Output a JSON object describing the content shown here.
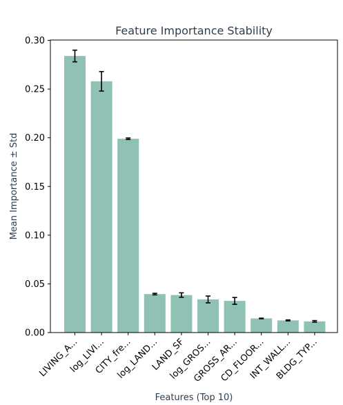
{
  "chart_data": {
    "type": "bar",
    "title": "Feature Importance Stability",
    "xlabel": "Features (Top 10)",
    "ylabel": "Mean Importance ± Std",
    "categories": [
      "LIVING_A...",
      "log_LIVI...",
      "CITY_fre...",
      "log_LAND...",
      "LAND_SF",
      "log_GROS...",
      "GROSS_AR...",
      "CD_FLOOR...",
      "INT_WALL...",
      "BLDG_TYP..."
    ],
    "values": [
      0.284,
      0.258,
      0.199,
      0.0395,
      0.0385,
      0.034,
      0.0325,
      0.0145,
      0.0125,
      0.0115
    ],
    "errors": [
      0.006,
      0.01,
      0.0008,
      0.0008,
      0.0023,
      0.0035,
      0.0035,
      0.0003,
      0.0005,
      0.0008
    ],
    "yticks": [
      "0.00",
      "0.05",
      "0.10",
      "0.15",
      "0.20",
      "0.25",
      "0.30"
    ],
    "ylim": [
      0,
      0.3004
    ],
    "grid": false,
    "bar_color": "#8fc1b5",
    "error_color": "#000000"
  }
}
